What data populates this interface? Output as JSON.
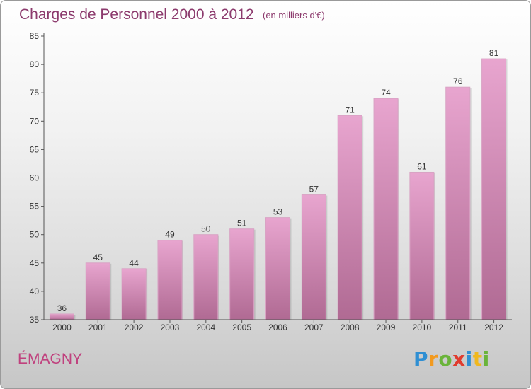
{
  "header": {
    "title": "Charges de Personnel 2000 à 2012",
    "subtitle": "(en milliers d'€)"
  },
  "footer": {
    "commune": "ÉMAGNY",
    "brand_letters": [
      {
        "ch": "P",
        "color": "#2f8fd3"
      },
      {
        "ch": "r",
        "color": "#f29a1f"
      },
      {
        "ch": "o",
        "color": "#6ab43a"
      },
      {
        "ch": "x",
        "color": "#e03c2e"
      },
      {
        "ch": "i",
        "color": "#2f8fd3"
      },
      {
        "ch": "t",
        "color": "#f0b81f"
      },
      {
        "ch": "i",
        "color": "#6ab43a"
      }
    ]
  },
  "colors": {
    "bar_top": "#e8a5cf",
    "bar_bottom": "#b06a93",
    "title": "#8c3a6d",
    "commune": "#c0417e"
  },
  "chart_data": {
    "type": "bar",
    "title": "Charges de Personnel 2000 à 2012",
    "subtitle": "(en milliers d'€)",
    "categories": [
      "2000",
      "2001",
      "2002",
      "2003",
      "2004",
      "2005",
      "2006",
      "2007",
      "2008",
      "2009",
      "2010",
      "2011",
      "2012"
    ],
    "values": [
      36,
      45,
      44,
      49,
      50,
      51,
      53,
      57,
      71,
      74,
      61,
      76,
      81
    ],
    "ylim": [
      35,
      85
    ],
    "yticks": [
      35,
      40,
      45,
      50,
      55,
      60,
      65,
      70,
      75,
      80,
      85
    ],
    "grid": false,
    "data_labels": true
  }
}
